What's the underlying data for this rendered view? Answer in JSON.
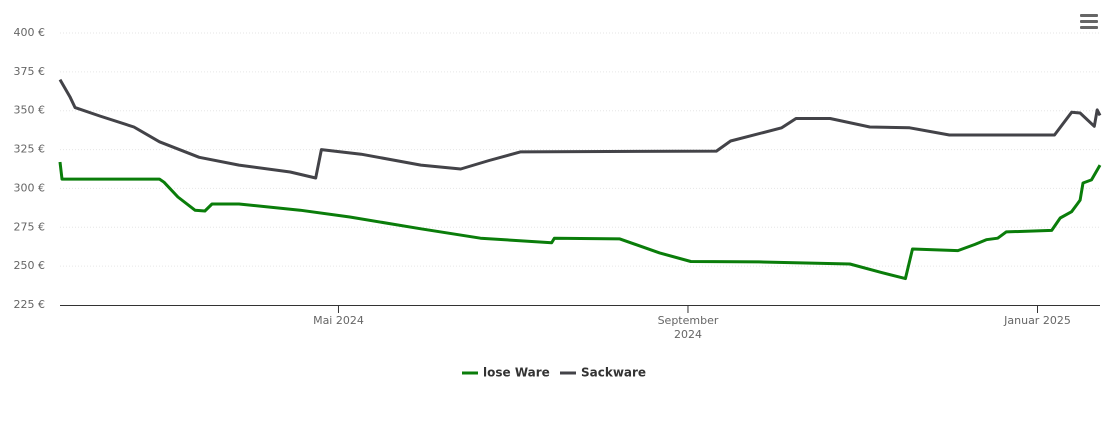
{
  "chart_data": {
    "type": "line",
    "xlim": [
      0,
      366
    ],
    "xticks": [
      {
        "value": 98,
        "label": "Mai 2024"
      },
      {
        "value": 221,
        "label": "September 2024"
      },
      {
        "value": 344,
        "label": "Januar 2025"
      }
    ],
    "ylim": [
      225,
      400
    ],
    "yticks": [
      {
        "value": 225,
        "label": "225 €"
      },
      {
        "value": 250,
        "label": "250 €"
      },
      {
        "value": 275,
        "label": "275 €"
      },
      {
        "value": 300,
        "label": "300 €"
      },
      {
        "value": 325,
        "label": "325 €"
      },
      {
        "value": 350,
        "label": "350 €"
      },
      {
        "value": 375,
        "label": "375 €"
      },
      {
        "value": 400,
        "label": "400 €"
      }
    ],
    "grid": true,
    "legend": "bottom",
    "series": [
      {
        "name": "lose Ware",
        "color": "#0a7d0a",
        "x": [
          0,
          0.7,
          35,
          36.6,
          41.5,
          47.5,
          51,
          53.5,
          63,
          84.5,
          102,
          127,
          148,
          173,
          174,
          197,
          211,
          222,
          246,
          278,
          289,
          297.5,
          300,
          316,
          322,
          326,
          330,
          333,
          349,
          352,
          356,
          358,
          359,
          360,
          363,
          366
        ],
        "values": [
          317,
          306,
          306,
          304,
          294.5,
          286,
          285.5,
          290,
          290,
          286,
          281.6,
          274,
          268,
          265,
          268,
          267.5,
          258.5,
          253,
          252.7,
          251.4,
          246,
          242,
          261,
          260,
          264,
          267,
          268,
          272,
          273,
          281,
          285,
          290,
          292.5,
          303.5,
          305.5,
          315
        ]
      },
      {
        "name": "Sackware",
        "color": "#434348",
        "x": [
          0,
          3.5,
          5.3,
          14,
          26,
          35,
          49,
          63,
          81,
          90,
          92,
          106,
          127,
          141,
          151,
          162,
          231,
          236,
          254,
          259,
          271,
          285,
          299,
          313,
          350,
          356,
          359,
          364,
          365,
          366
        ],
        "values": [
          370,
          359,
          352,
          346.6,
          339.5,
          330,
          320,
          315,
          310.6,
          306.7,
          325,
          322,
          315,
          312.5,
          318,
          323.5,
          324,
          330.5,
          339,
          345,
          345,
          339.5,
          339,
          334.4,
          334.4,
          349,
          348.5,
          340,
          350.5,
          347
        ]
      }
    ]
  }
}
